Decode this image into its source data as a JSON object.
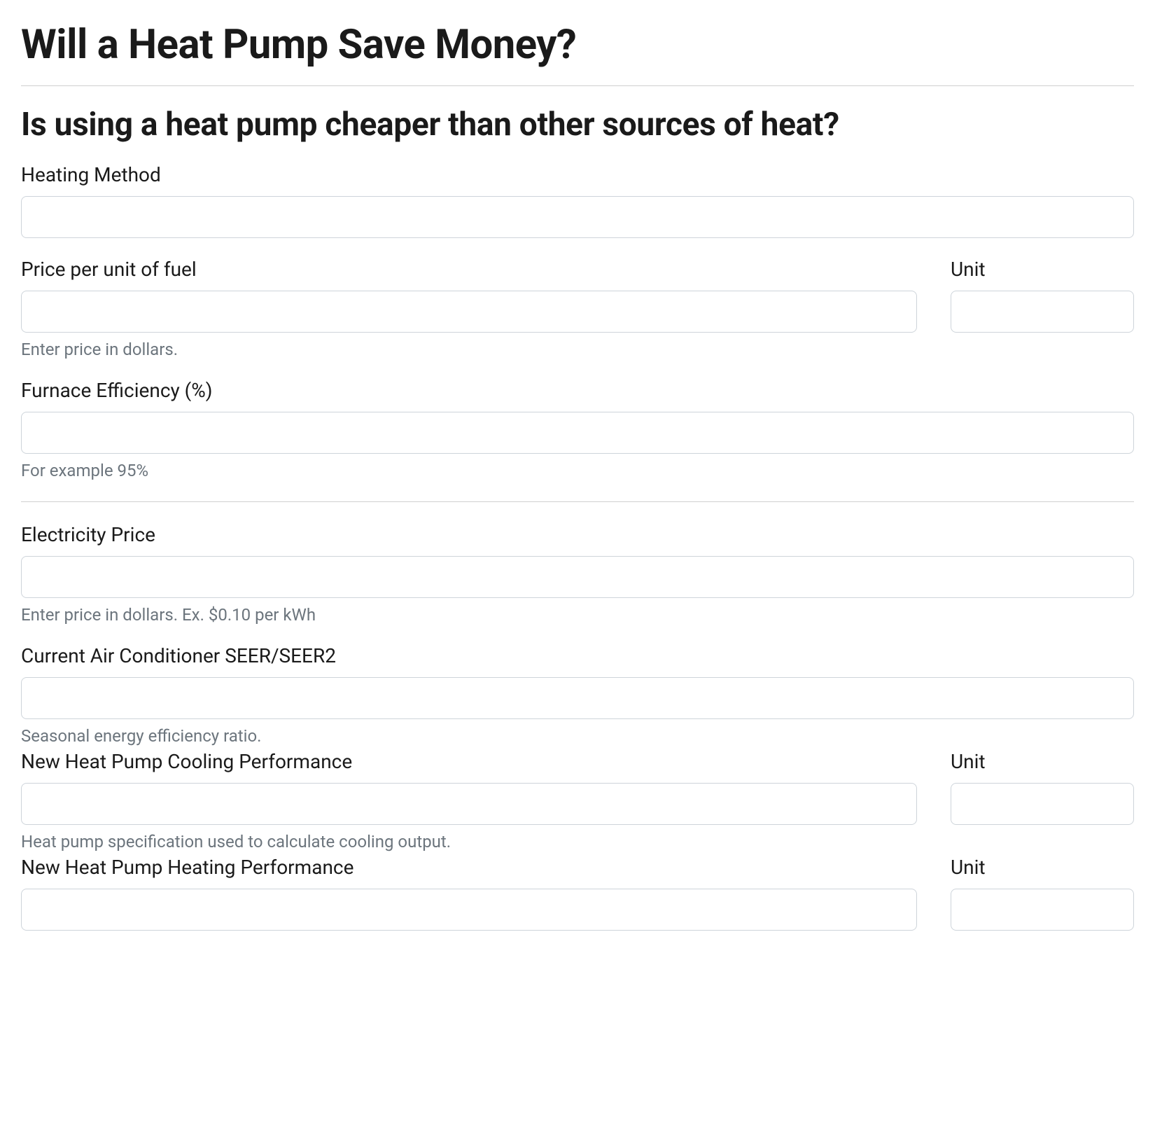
{
  "page": {
    "title": "Will a Heat Pump Save Money?",
    "subtitle": "Is using a heat pump cheaper than other sources of heat?"
  },
  "form": {
    "heatingMethod": {
      "label": "Heating Method",
      "value": ""
    },
    "pricePerUnit": {
      "label": "Price per unit of fuel",
      "value": "",
      "help": "Enter price in dollars.",
      "unitLabel": "Unit",
      "unitValue": ""
    },
    "furnaceEfficiency": {
      "label": "Furnace Efficiency (%)",
      "value": "",
      "help": "For example 95%"
    },
    "electricityPrice": {
      "label": "Electricity Price",
      "value": "",
      "help": "Enter price in dollars. Ex. $0.10 per kWh"
    },
    "currentACSeer": {
      "label": "Current Air Conditioner SEER/SEER2",
      "value": "",
      "help": "Seasonal energy efficiency ratio."
    },
    "heatPumpCooling": {
      "label": "New Heat Pump Cooling Performance",
      "value": "",
      "help": "Heat pump specification used to calculate cooling output.",
      "unitLabel": "Unit",
      "unitValue": ""
    },
    "heatPumpHeating": {
      "label": "New Heat Pump Heating Performance",
      "value": "",
      "unitLabel": "Unit",
      "unitValue": ""
    }
  },
  "styling": {
    "backgroundColor": "#ffffff",
    "textColor": "#1a1a1a",
    "helpTextColor": "#6c757d",
    "borderColor": "#ced4da",
    "dividerColor": "#d0d0d0",
    "titleFontSize": 58,
    "subtitleFontSize": 46,
    "labelFontSize": 28,
    "helpFontSize": 24,
    "inputHeight": 60,
    "inputBorderRadius": 8
  }
}
